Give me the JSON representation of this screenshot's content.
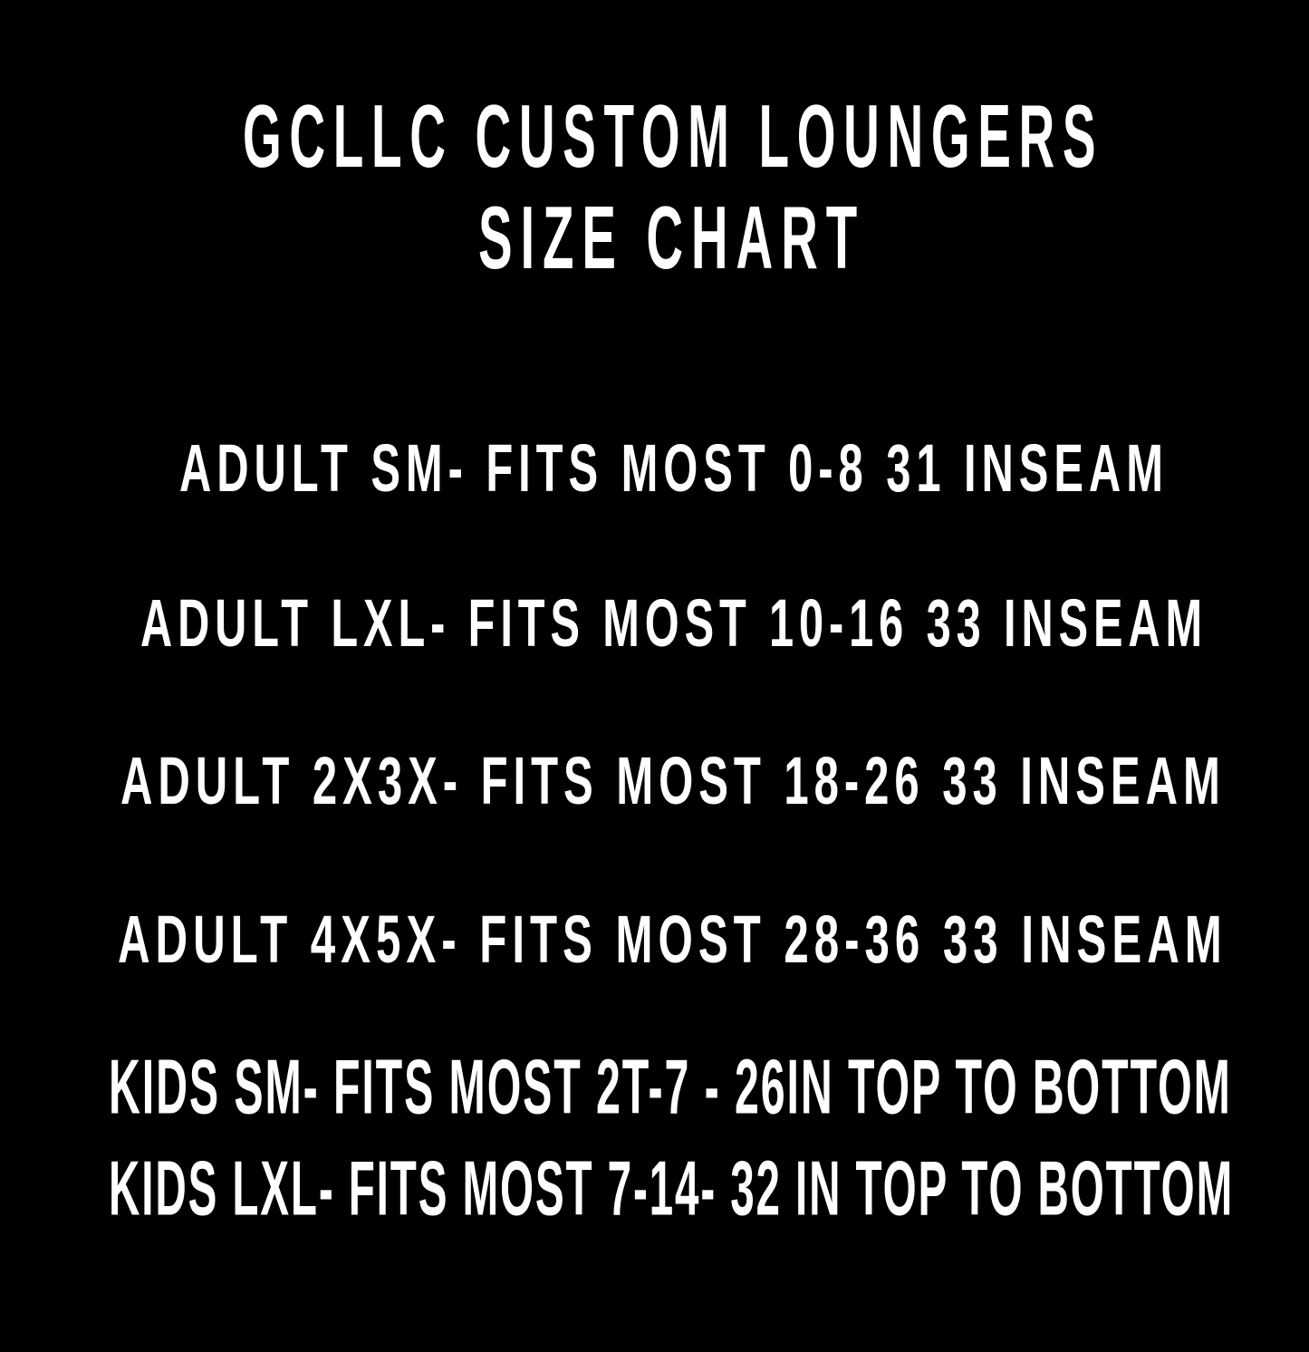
{
  "title": {
    "line1": "GCLLC CUSTOM LOUNGERS",
    "line2": "SIZE CHART"
  },
  "sizes": [
    {
      "label": "ADULT SM- FITS MOST 0-8  31 INSEAM"
    },
    {
      "label": "ADULT LXL- FITS MOST 10-16  33 INSEAM"
    },
    {
      "label": "ADULT 2X3X- FITS MOST 18-26  33 INSEAM"
    },
    {
      "label": "ADULT 4X5X- FITS MOST 28-36  33 INSEAM"
    },
    {
      "label": "KIDS SM- FITS MOST 2T-7 - 26IN TOP TO BOTTOM"
    },
    {
      "label": "KIDS LXL- FITS MOST 7-14- 32 IN TOP TO BOTTOM"
    }
  ],
  "colors": {
    "background": "#000000",
    "text": "#ffffff"
  }
}
